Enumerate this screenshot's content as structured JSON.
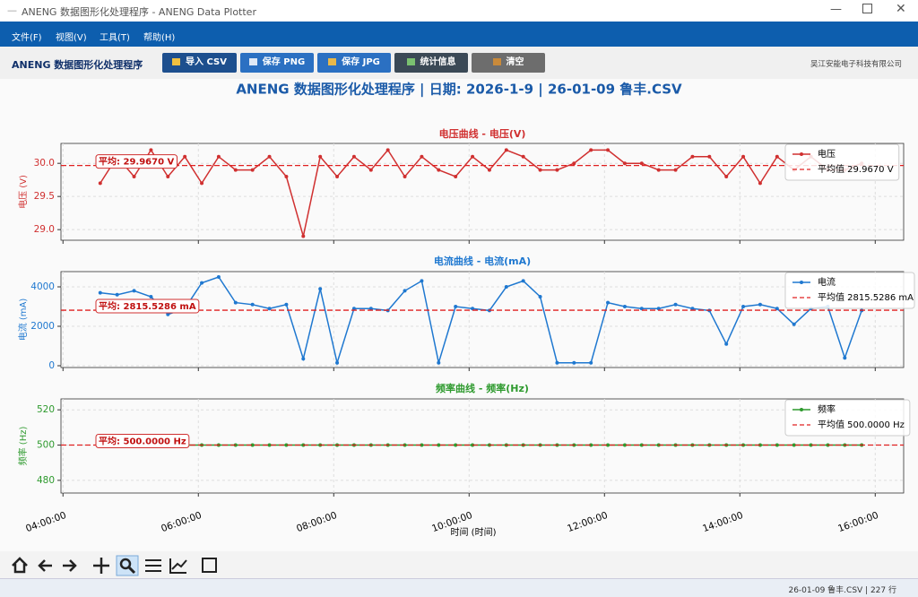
{
  "window": {
    "title": "ANENG 数据图形化处理程序 - ANENG Data Plotter"
  },
  "menu": [
    "文件(F)",
    "视图(V)",
    "工具(T)",
    "帮助(H)"
  ],
  "toolbar": {
    "brand": "ANENG 数据图形化处理程序",
    "buttons": [
      "导入 CSV",
      "保存 PNG",
      "保存 JPG",
      "统计信息",
      "清空"
    ],
    "company": "吴江安能电子科技有限公司"
  },
  "figure_title": "ANENG 数据图形化处理程序 | 日期: 2026-1-9 | 26-01-09 鲁丰.CSV",
  "x_axis": {
    "label": "时间 (时间)",
    "xlim": [
      3.97,
      16.42
    ],
    "xticks": [
      {
        "value": 4,
        "label": "04:00:00"
      },
      {
        "value": 6,
        "label": "06:00:00"
      },
      {
        "value": 8,
        "label": "08:00:00"
      },
      {
        "value": 10,
        "label": "10:00:00"
      },
      {
        "value": 12,
        "label": "12:00:00"
      },
      {
        "value": 14,
        "label": "14:00:00"
      },
      {
        "value": 16,
        "label": "16:00:00"
      }
    ]
  },
  "chart_data": [
    {
      "type": "line",
      "title": "电压曲线 - 电压(V)",
      "ylabel": "电压 (V)",
      "x": [
        4.55,
        4.8,
        5.05,
        5.3,
        5.55,
        5.8,
        6.05,
        6.3,
        6.55,
        6.8,
        7.05,
        7.3,
        7.55,
        7.8,
        8.05,
        8.3,
        8.55,
        8.8,
        9.05,
        9.3,
        9.55,
        9.8,
        10.05,
        10.3,
        10.55,
        10.8,
        11.05,
        11.3,
        11.55,
        11.8,
        12.05,
        12.3,
        12.55,
        12.8,
        13.05,
        13.3,
        13.55,
        13.8,
        14.05,
        14.3,
        14.55,
        14.8,
        15.05,
        15.3,
        15.55,
        15.8
      ],
      "series": [
        {
          "name": "电压",
          "color": "#d03030",
          "values": [
            29.7,
            30.1,
            29.8,
            30.2,
            29.8,
            30.1,
            29.7,
            30.1,
            29.9,
            29.9,
            30.1,
            29.8,
            28.9,
            30.1,
            29.8,
            30.1,
            29.9,
            30.2,
            29.8,
            30.1,
            29.9,
            29.8,
            30.1,
            29.9,
            30.2,
            30.1,
            29.9,
            29.9,
            30.0,
            30.2,
            30.2,
            30.0,
            30.0,
            29.9,
            29.9,
            30.1,
            30.1,
            29.8,
            30.1,
            29.7,
            30.1,
            29.9,
            30.1,
            29.9,
            29.9,
            30.0
          ]
        }
      ],
      "ylim": [
        28.84,
        30.3
      ],
      "yticks": [
        {
          "value": 29,
          "label": "29.0"
        },
        {
          "value": 29.5,
          "label": "29.5"
        },
        {
          "value": 30,
          "label": "30.0"
        }
      ],
      "mean": 29.967,
      "mean_label": "平均: 29.9670 V",
      "mean_legend": "平均值 29.9670 V",
      "mean_color": "#e02020"
    },
    {
      "type": "line",
      "title": "电流曲线 - 电流(mA)",
      "ylabel": "电流 (mA)",
      "x": [
        4.55,
        4.8,
        5.05,
        5.3,
        5.55,
        5.8,
        6.05,
        6.3,
        6.55,
        6.8,
        7.05,
        7.3,
        7.55,
        7.8,
        8.05,
        8.3,
        8.55,
        8.8,
        9.05,
        9.3,
        9.55,
        9.8,
        10.05,
        10.3,
        10.55,
        10.8,
        11.05,
        11.3,
        11.55,
        11.8,
        12.05,
        12.3,
        12.55,
        12.8,
        13.05,
        13.3,
        13.55,
        13.8,
        14.05,
        14.3,
        14.55,
        14.8,
        15.05,
        15.3,
        15.55,
        15.8
      ],
      "series": [
        {
          "name": "电流",
          "color": "#1f78d0",
          "values": [
            3700,
            3600,
            3800,
            3500,
            2600,
            2900,
            4200,
            4500,
            3200,
            3100,
            2900,
            3100,
            350,
            3900,
            150,
            2900,
            2900,
            2800,
            3800,
            4300,
            150,
            3000,
            2900,
            2800,
            4000,
            4300,
            3500,
            150,
            150,
            150,
            3200,
            3000,
            2900,
            2900,
            3100,
            2900,
            2800,
            1100,
            3000,
            3100,
            2900,
            2100,
            2900,
            3000,
            400,
            2800
          ]
        }
      ],
      "ylim": [
        -91,
        4773
      ],
      "yticks": [
        0,
        2000,
        4000
      ],
      "mean": 2815.5286,
      "mean_label": "平均: 2815.5286 mA",
      "mean_legend": "平均值 2815.5286 mA",
      "mean_color": "#e02020"
    },
    {
      "type": "line",
      "title": "频率曲线 - 频率(Hz)",
      "ylabel": "频率 (Hz)",
      "x": [
        5.8,
        6.05,
        6.3,
        6.55,
        6.8,
        7.05,
        7.3,
        7.55,
        7.8,
        8.05,
        8.3,
        8.55,
        8.8,
        9.05,
        9.3,
        9.55,
        9.8,
        10.05,
        10.3,
        10.55,
        10.8,
        11.05,
        11.3,
        11.55,
        11.8,
        12.05,
        12.3,
        12.55,
        12.8,
        13.05,
        13.3,
        13.55,
        13.8,
        14.05,
        14.3,
        14.55,
        14.8,
        15.05,
        15.3,
        15.55,
        15.8
      ],
      "series": [
        {
          "name": "频率",
          "color": "#2e9a2e",
          "values": [
            500,
            500,
            500,
            500,
            500,
            500,
            500,
            500,
            500,
            500,
            500,
            500,
            500,
            500,
            500,
            500,
            500,
            500,
            500,
            500,
            500,
            500,
            500,
            500,
            500,
            500,
            500,
            500,
            500,
            500,
            500,
            500,
            500,
            500,
            500,
            500,
            500,
            500,
            500,
            500,
            500
          ]
        }
      ],
      "ylim": [
        472.8,
        526.2
      ],
      "yticks": [
        480,
        500,
        520
      ],
      "mean": 500,
      "mean_label": "平均: 500.0000 Hz",
      "mean_legend": "平均值 500.0000 Hz",
      "mean_color": "#e02020"
    }
  ],
  "status": "26-01-09 鲁丰.CSV | 227 行"
}
